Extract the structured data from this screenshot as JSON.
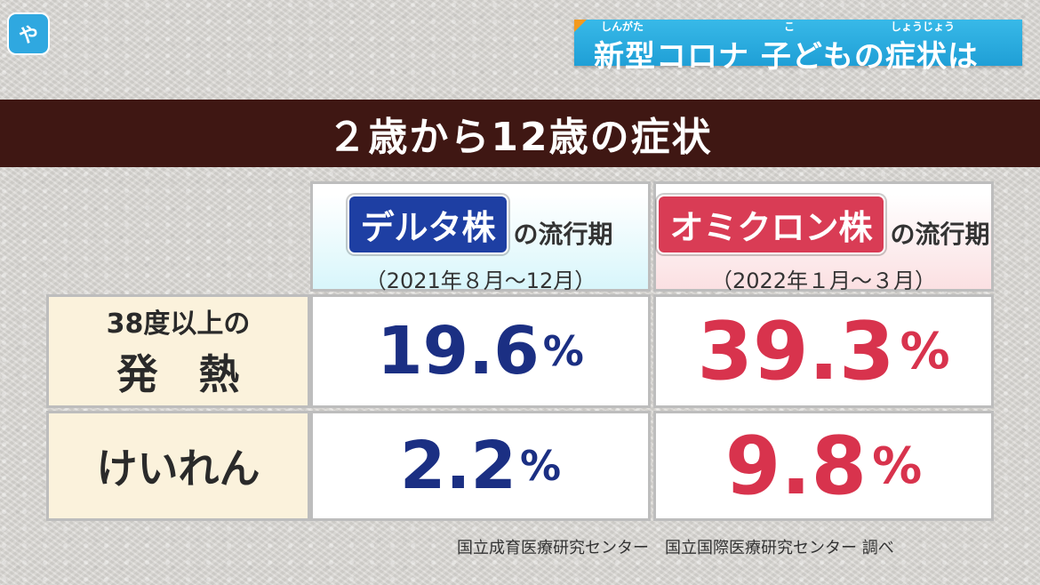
{
  "logo": {
    "text": "や"
  },
  "headline": {
    "text": "新型コロナ 子どもの症状は",
    "ruby": [
      "しんがた",
      "こ",
      "しょうじょう"
    ]
  },
  "banner": {
    "title": "２歳から12歳の症状"
  },
  "columns": [
    {
      "name": "デルタ株",
      "suffix": "の流行期",
      "period": "（2021年８月～12月）",
      "color": "#1e3fa3"
    },
    {
      "name": "オミクロン株",
      "suffix": "の流行期",
      "period": "（2022年１月～３月）",
      "color": "#d93c55"
    }
  ],
  "rows": [
    {
      "label_line1": "38度以上の",
      "label_line2": "発　熱",
      "delta": "19.6",
      "omicron": "39.3",
      "unit": "%"
    },
    {
      "label_line1": "けいれん",
      "label_line2": "",
      "delta": "2.2",
      "omicron": "9.8",
      "unit": "%"
    }
  ],
  "source": "国立成育医療研究センター　国立国際医療研究センター 調べ"
}
